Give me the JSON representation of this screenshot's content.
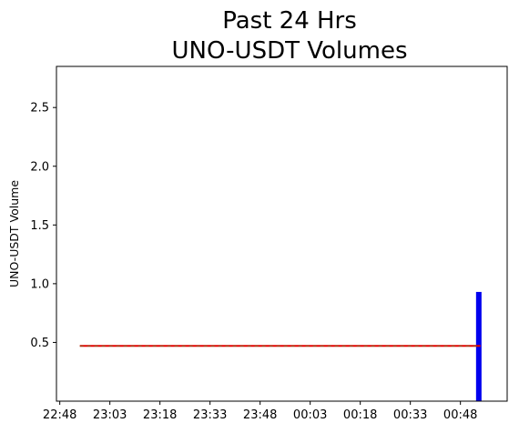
{
  "chart_data": {
    "type": "bar",
    "title_lines": [
      "Past 24 Hrs",
      "UNO-USDT Volumes"
    ],
    "xlabel": "",
    "ylabel": "UNO-USDT Volume",
    "x_tick_labels": [
      "22:48",
      "23:03",
      "23:18",
      "23:33",
      "23:48",
      "00:03",
      "00:18",
      "00:33",
      "00:48"
    ],
    "x_ticks_minutes": [
      0,
      15,
      30,
      45,
      60,
      75,
      90,
      105,
      120
    ],
    "xlim_minutes": [
      -1,
      134
    ],
    "ylim": [
      0.0,
      2.85
    ],
    "y_ticks": [
      0.5,
      1.0,
      1.5,
      2.0,
      2.5
    ],
    "y_tick_labels": [
      "0.5",
      "1.0",
      "1.5",
      "2.0",
      "2.5"
    ],
    "bars": [
      {
        "x_minutes": 125.5,
        "value": 0.93
      }
    ],
    "mean_line": {
      "value": 0.47,
      "x_start_minutes": 6,
      "x_end_minutes": 126
    },
    "colors": {
      "bar": "#0000ee",
      "mean_line": "#e60000",
      "mean_line_dash": "#2ca02c"
    },
    "grid": false
  }
}
